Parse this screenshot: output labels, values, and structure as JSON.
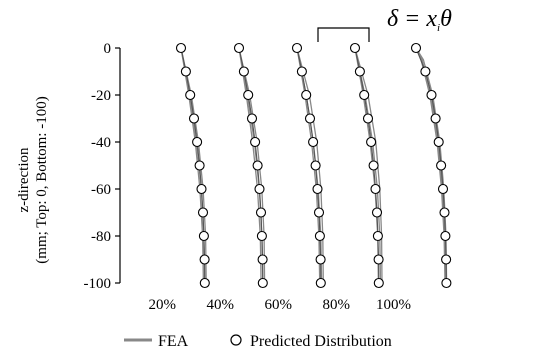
{
  "chart_data": {
    "type": "line",
    "title": "",
    "ylabel_lines": [
      "z-direction",
      "(mm; Top: 0, Bottom: -100)"
    ],
    "xlabel": "",
    "ylim": [
      -100,
      0
    ],
    "y_ticks": [
      0,
      -20,
      -40,
      -60,
      -80,
      -100
    ],
    "grid": false,
    "legend_position": "bottom",
    "legend": {
      "fea_label": "FEA",
      "predicted_label": "Predicted Distribution"
    },
    "annotation": {
      "formula_lhs": "δ = x",
      "formula_sub": "i",
      "formula_rhs": "θ"
    },
    "colors": {
      "fea": "#888888",
      "predicted_marker_edge": "#000000",
      "predicted_marker_fill": "#ffffff",
      "axis": "#000000"
    },
    "groups": [
      {
        "label": "20%",
        "predicted": [
          [
            0,
            0.0
          ],
          [
            -10,
            3.6
          ],
          [
            -20,
            6.8
          ],
          [
            -30,
            9.6
          ],
          [
            -40,
            11.9
          ],
          [
            -50,
            13.8
          ],
          [
            -60,
            15.2
          ],
          [
            -70,
            16.3
          ],
          [
            -80,
            17.0
          ],
          [
            -90,
            17.5
          ],
          [
            -100,
            17.6
          ]
        ],
        "fea": [
          [
            [
              0,
              0.0
            ],
            [
              -20,
              6.5
            ],
            [
              -40,
              11.5
            ],
            [
              -60,
              15.0
            ],
            [
              -80,
              16.9
            ],
            [
              -100,
              17.5
            ]
          ],
          [
            [
              0,
              0.0
            ],
            [
              -20,
              7.6
            ],
            [
              -40,
              12.9
            ],
            [
              -60,
              16.4
            ],
            [
              -80,
              18.2
            ],
            [
              -100,
              18.7
            ]
          ],
          [
            [
              0,
              0.0
            ],
            [
              -20,
              5.8
            ],
            [
              -40,
              10.6
            ],
            [
              -60,
              14.0
            ],
            [
              -80,
              16.0
            ],
            [
              -100,
              16.6
            ]
          ]
        ]
      },
      {
        "label": "40%",
        "predicted": [
          [
            0,
            0.0
          ],
          [
            -10,
            3.6
          ],
          [
            -20,
            6.8
          ],
          [
            -30,
            9.6
          ],
          [
            -40,
            11.9
          ],
          [
            -50,
            13.8
          ],
          [
            -60,
            15.2
          ],
          [
            -70,
            16.3
          ],
          [
            -80,
            17.0
          ],
          [
            -90,
            17.5
          ],
          [
            -100,
            17.6
          ]
        ],
        "fea": [
          [
            [
              0,
              0.0
            ],
            [
              -20,
              6.2
            ],
            [
              -40,
              11.4
            ],
            [
              -60,
              15.0
            ],
            [
              -80,
              17.0
            ],
            [
              -100,
              17.6
            ]
          ],
          [
            [
              0,
              0.0
            ],
            [
              -20,
              7.9
            ],
            [
              -40,
              13.4
            ],
            [
              -60,
              16.9
            ],
            [
              -80,
              18.6
            ],
            [
              -100,
              19.0
            ]
          ],
          [
            [
              0,
              0.0
            ],
            [
              -20,
              5.4
            ],
            [
              -40,
              10.1
            ],
            [
              -60,
              13.7
            ],
            [
              -80,
              15.8
            ],
            [
              -100,
              16.4
            ]
          ]
        ]
      },
      {
        "label": "60%",
        "predicted": [
          [
            0,
            0.0
          ],
          [
            -10,
            3.6
          ],
          [
            -20,
            6.8
          ],
          [
            -30,
            9.6
          ],
          [
            -40,
            11.9
          ],
          [
            -50,
            13.8
          ],
          [
            -60,
            15.2
          ],
          [
            -70,
            16.3
          ],
          [
            -80,
            17.0
          ],
          [
            -90,
            17.5
          ],
          [
            -100,
            17.6
          ]
        ],
        "fea": [
          [
            [
              0,
              0.0
            ],
            [
              -20,
              6.8
            ],
            [
              -40,
              12.1
            ],
            [
              -60,
              15.7
            ],
            [
              -80,
              17.6
            ],
            [
              -100,
              18.2
            ]
          ],
          [
            [
              0,
              0.0
            ],
            [
              -20,
              9.2
            ],
            [
              -40,
              14.6
            ],
            [
              -60,
              17.7
            ],
            [
              -80,
              19.1
            ],
            [
              -100,
              19.5
            ]
          ],
          [
            [
              0,
              0.0
            ],
            [
              -20,
              5.9
            ],
            [
              -40,
              10.8
            ],
            [
              -60,
              14.3
            ],
            [
              -80,
              16.2
            ],
            [
              -100,
              16.8
            ]
          ]
        ]
      },
      {
        "label": "80%",
        "predicted": [
          [
            0,
            0.0
          ],
          [
            -10,
            3.6
          ],
          [
            -20,
            6.8
          ],
          [
            -30,
            9.6
          ],
          [
            -40,
            11.9
          ],
          [
            -50,
            13.8
          ],
          [
            -60,
            15.2
          ],
          [
            -70,
            16.3
          ],
          [
            -80,
            17.0
          ],
          [
            -90,
            17.5
          ],
          [
            -100,
            17.6
          ]
        ],
        "fea": [
          [
            [
              0,
              0.0
            ],
            [
              -20,
              7.4
            ],
            [
              -40,
              13.0
            ],
            [
              -60,
              16.6
            ],
            [
              -80,
              18.4
            ],
            [
              -100,
              18.9
            ]
          ],
          [
            [
              0,
              0.0
            ],
            [
              -20,
              9.6
            ],
            [
              -40,
              15.4
            ],
            [
              -60,
              18.4
            ],
            [
              -80,
              19.7
            ],
            [
              -100,
              20.0
            ]
          ],
          [
            [
              0,
              0.0
            ],
            [
              -20,
              6.1
            ],
            [
              -40,
              11.2
            ],
            [
              -60,
              14.9
            ],
            [
              -80,
              16.8
            ],
            [
              -100,
              17.3
            ]
          ]
        ]
      },
      {
        "label": "100%",
        "predicted": [
          [
            0,
            0.0
          ],
          [
            -10,
            7.0
          ],
          [
            -20,
            11.5
          ],
          [
            -30,
            14.5
          ],
          [
            -40,
            16.8
          ],
          [
            -50,
            18.6
          ],
          [
            -60,
            20.0
          ],
          [
            -70,
            21.1
          ],
          [
            -80,
            21.8
          ],
          [
            -90,
            22.3
          ],
          [
            -100,
            22.5
          ]
        ],
        "fea": [
          [
            [
              0,
              0.0
            ],
            [
              -5,
              4.5
            ],
            [
              -20,
              11.0
            ],
            [
              -40,
              16.4
            ],
            [
              -60,
              19.6
            ],
            [
              -80,
              21.4
            ],
            [
              -100,
              22.1
            ]
          ],
          [
            [
              0,
              0.0
            ],
            [
              -5,
              5.5
            ],
            [
              -20,
              12.4
            ],
            [
              -40,
              17.6
            ],
            [
              -60,
              20.6
            ],
            [
              -80,
              22.2
            ],
            [
              -100,
              22.7
            ]
          ],
          [
            [
              0,
              0.0
            ],
            [
              -5,
              3.8
            ],
            [
              -20,
              10.2
            ],
            [
              -40,
              15.6
            ],
            [
              -60,
              18.9
            ],
            [
              -80,
              20.8
            ],
            [
              -100,
              21.5
            ]
          ]
        ]
      }
    ]
  }
}
